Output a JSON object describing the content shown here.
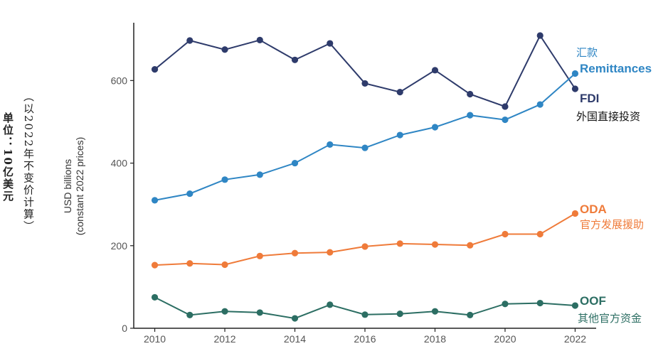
{
  "unit_label": "单位：10亿美元",
  "price_note": "（以2022年不变价计算）",
  "chart_data": {
    "type": "line",
    "x": [
      2010,
      2011,
      2012,
      2013,
      2014,
      2015,
      2016,
      2017,
      2018,
      2019,
      2020,
      2021,
      2022
    ],
    "xticks": [
      2010,
      2012,
      2014,
      2016,
      2018,
      2020,
      2022
    ],
    "yticks": [
      0,
      200,
      400,
      600
    ],
    "xlim": [
      2009.4,
      2022.6
    ],
    "ylim": [
      0,
      740
    ],
    "ylabel_line1": "USD billions",
    "ylabel_line2": "(constant 2022 prices)",
    "series": [
      {
        "name": "FDI",
        "name_zh": "外国直接投资",
        "color": "#2e3b6b",
        "values": [
          627,
          697,
          675,
          698,
          650,
          690,
          593,
          572,
          625,
          567,
          537,
          709,
          580
        ]
      },
      {
        "name": "Remittances",
        "name_zh": "汇款",
        "color": "#2f86c4",
        "values": [
          310,
          326,
          360,
          372,
          400,
          445,
          437,
          468,
          487,
          516,
          505,
          542,
          617
        ]
      },
      {
        "name": "ODA",
        "name_zh": "官方发展援助",
        "color": "#ef7b3a",
        "values": [
          153,
          157,
          154,
          175,
          182,
          184,
          198,
          205,
          203,
          201,
          228,
          228,
          278
        ]
      },
      {
        "name": "OOF",
        "name_zh": "其他官方资金",
        "color": "#2c6e63",
        "values": [
          75,
          32,
          41,
          38,
          24,
          57,
          33,
          35,
          41,
          32,
          59,
          61,
          55
        ]
      }
    ]
  }
}
